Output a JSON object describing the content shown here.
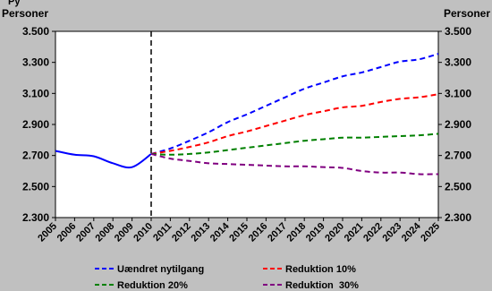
{
  "chart_data": {
    "type": "line",
    "corner_fragment": "Py",
    "ylabel_left": "Personer",
    "ylabel_right": "Personer",
    "ylim": [
      2300,
      3500
    ],
    "yticks": [
      2300,
      2500,
      2700,
      2900,
      3100,
      3300,
      3500
    ],
    "ytick_labels": [
      "2.300",
      "2.500",
      "2.700",
      "2.900",
      "3.100",
      "3.300",
      "3.500"
    ],
    "x": [
      2005,
      2006,
      2007,
      2008,
      2009,
      2010,
      2011,
      2012,
      2013,
      2014,
      2015,
      2016,
      2017,
      2018,
      2019,
      2020,
      2021,
      2022,
      2023,
      2024,
      2025
    ],
    "xtick_labels": [
      "2005",
      "2006",
      "2007",
      "2008",
      "2009",
      "2010",
      "2011",
      "2012",
      "2013",
      "2014",
      "2015",
      "2016",
      "2017",
      "2018",
      "2019",
      "2020",
      "2021",
      "2022",
      "2023",
      "2024",
      "2025"
    ],
    "vline_x": 2010,
    "grid": false,
    "legend_position": "bottom",
    "historical": {
      "color": "#0000ff",
      "x": [
        2005,
        2006,
        2007,
        2008,
        2009,
        2010
      ],
      "values": [
        2730,
        2705,
        2695,
        2650,
        2625,
        2710
      ]
    },
    "series": [
      {
        "name": "Uændret nytilgang",
        "color": "#0000ff",
        "x": [
          2010,
          2011,
          2012,
          2013,
          2014,
          2015,
          2016,
          2017,
          2018,
          2019,
          2020,
          2021,
          2022,
          2023,
          2024,
          2025
        ],
        "values": [
          2710,
          2745,
          2795,
          2850,
          2915,
          2965,
          3020,
          3075,
          3130,
          3170,
          3210,
          3235,
          3270,
          3305,
          3320,
          3355
        ]
      },
      {
        "name": "Reduktion 10%",
        "color": "#ff0000",
        "x": [
          2010,
          2011,
          2012,
          2013,
          2014,
          2015,
          2016,
          2017,
          2018,
          2019,
          2020,
          2021,
          2022,
          2023,
          2024,
          2025
        ],
        "values": [
          2710,
          2730,
          2755,
          2785,
          2825,
          2855,
          2890,
          2925,
          2960,
          2985,
          3010,
          3020,
          3045,
          3065,
          3075,
          3095
        ]
      },
      {
        "name": "Reduktion 20%",
        "color": "#008000",
        "x": [
          2010,
          2011,
          2012,
          2013,
          2014,
          2015,
          2016,
          2017,
          2018,
          2019,
          2020,
          2021,
          2022,
          2023,
          2024,
          2025
        ],
        "values": [
          2710,
          2705,
          2710,
          2720,
          2735,
          2750,
          2765,
          2780,
          2795,
          2805,
          2815,
          2815,
          2820,
          2825,
          2830,
          2840
        ]
      },
      {
        "name": "Reduktion  30%",
        "color": "#800080",
        "x": [
          2010,
          2011,
          2012,
          2013,
          2014,
          2015,
          2016,
          2017,
          2018,
          2019,
          2020,
          2021,
          2022,
          2023,
          2024,
          2025
        ],
        "values": [
          2710,
          2680,
          2665,
          2650,
          2645,
          2640,
          2635,
          2630,
          2630,
          2625,
          2620,
          2600,
          2590,
          2590,
          2580,
          2580
        ]
      }
    ]
  }
}
